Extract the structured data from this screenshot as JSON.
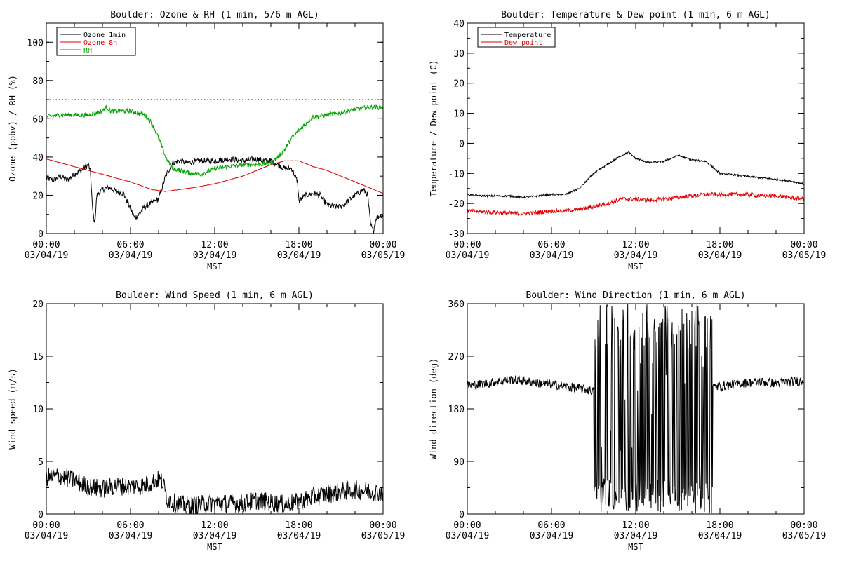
{
  "colors": {
    "black": "#000000",
    "red": "#e00000",
    "green": "#00a000"
  },
  "x_ticks": [
    {
      "time": "00:00",
      "date": "03/04/19"
    },
    {
      "time": "06:00",
      "date": "03/04/19"
    },
    {
      "time": "12:00",
      "date": "03/04/19"
    },
    {
      "time": "18:00",
      "date": "03/04/19"
    },
    {
      "time": "00:00",
      "date": "03/05/19"
    }
  ],
  "chart_data": [
    {
      "type": "line",
      "title": "Boulder: Ozone & RH (1 min, 5/6 m AGL)",
      "xlabel": "MST",
      "ylabel": "Ozone (ppbv) / RH (%)",
      "xlim_hours": [
        0,
        24
      ],
      "ylim": [
        0,
        110
      ],
      "yticks": [
        0,
        20,
        40,
        60,
        80,
        100
      ],
      "reference_line": {
        "value": 70,
        "style": "dotted",
        "color": "#e00000"
      },
      "legend": "top-left",
      "series": [
        {
          "name": "Ozone 1min",
          "color": "#000000",
          "noise": 1.5,
          "points": [
            [
              0,
              29
            ],
            [
              0.5,
              28
            ],
            [
              1,
              30
            ],
            [
              1.5,
              28
            ],
            [
              2,
              31
            ],
            [
              2.5,
              33
            ],
            [
              3,
              36
            ],
            [
              3.15,
              32
            ],
            [
              3.3,
              12
            ],
            [
              3.45,
              5
            ],
            [
              3.6,
              20
            ],
            [
              4,
              23
            ],
            [
              4.5,
              24
            ],
            [
              5,
              22
            ],
            [
              5.5,
              21
            ],
            [
              6,
              13
            ],
            [
              6.3,
              8
            ],
            [
              6.6,
              10
            ],
            [
              7,
              14
            ],
            [
              7.5,
              16
            ],
            [
              8,
              18
            ],
            [
              8.5,
              30
            ],
            [
              9,
              37
            ],
            [
              9.5,
              38
            ],
            [
              10,
              37
            ],
            [
              11,
              38
            ],
            [
              12,
              38
            ],
            [
              13,
              39
            ],
            [
              14,
              38
            ],
            [
              15,
              39
            ],
            [
              15.5,
              38
            ],
            [
              16,
              38
            ],
            [
              16.5,
              36
            ],
            [
              17,
              34
            ],
            [
              17.5,
              34
            ],
            [
              17.9,
              27
            ],
            [
              18,
              17
            ],
            [
              18.5,
              20
            ],
            [
              19,
              21
            ],
            [
              19.5,
              20
            ],
            [
              20,
              15
            ],
            [
              20.5,
              14
            ],
            [
              21,
              14
            ],
            [
              21.5,
              17
            ],
            [
              22,
              20
            ],
            [
              22.4,
              22
            ],
            [
              22.6,
              23
            ],
            [
              22.9,
              20
            ],
            [
              23.1,
              5
            ],
            [
              23.3,
              1
            ],
            [
              23.5,
              8
            ],
            [
              24,
              10
            ]
          ]
        },
        {
          "name": "Ozone 8h",
          "color": "#e00000",
          "noise": 0.1,
          "points": [
            [
              0,
              39
            ],
            [
              2,
              35
            ],
            [
              4,
              31
            ],
            [
              6,
              27
            ],
            [
              7.5,
              23
            ],
            [
              8.5,
              22
            ],
            [
              9.5,
              23
            ],
            [
              10.5,
              24
            ],
            [
              12,
              26
            ],
            [
              14,
              30
            ],
            [
              16,
              36
            ],
            [
              17,
              38
            ],
            [
              18,
              38
            ],
            [
              19,
              35
            ],
            [
              20,
              33
            ],
            [
              21,
              30
            ],
            [
              22,
              27
            ],
            [
              23,
              24
            ],
            [
              24,
              21
            ]
          ]
        },
        {
          "name": "RH",
          "color": "#00a000",
          "noise": 1.2,
          "points": [
            [
              0,
              61
            ],
            [
              1,
              62
            ],
            [
              2,
              62
            ],
            [
              3,
              62
            ],
            [
              3.5,
              63
            ],
            [
              4,
              64
            ],
            [
              4.3,
              66
            ],
            [
              4.6,
              64
            ],
            [
              5,
              64
            ],
            [
              6,
              64
            ],
            [
              7,
              62
            ],
            [
              7.5,
              58
            ],
            [
              8,
              50
            ],
            [
              8.5,
              40
            ],
            [
              9,
              34
            ],
            [
              10,
              32
            ],
            [
              11,
              31
            ],
            [
              12,
              34
            ],
            [
              13,
              35
            ],
            [
              14,
              36
            ],
            [
              15,
              36
            ],
            [
              16,
              37
            ],
            [
              16.5,
              40
            ],
            [
              17,
              44
            ],
            [
              17.5,
              50
            ],
            [
              18,
              54
            ],
            [
              19,
              61
            ],
            [
              20,
              62
            ],
            [
              21,
              63
            ],
            [
              22,
              65
            ],
            [
              23,
              66
            ],
            [
              24,
              66
            ]
          ]
        }
      ]
    },
    {
      "type": "line",
      "title": "Boulder: Temperature & Dew point (1 min, 6 m AGL)",
      "xlabel": "MST",
      "ylabel": "Temperature / Dew point (C)",
      "xlim_hours": [
        0,
        24
      ],
      "ylim": [
        -30,
        40
      ],
      "yticks": [
        -30,
        -20,
        -10,
        0,
        10,
        20,
        30,
        40
      ],
      "legend": "top-left",
      "series": [
        {
          "name": "Temperature",
          "color": "#000000",
          "noise": 0.3,
          "points": [
            [
              0,
              -17
            ],
            [
              1,
              -17.5
            ],
            [
              2,
              -17.5
            ],
            [
              3,
              -17.5
            ],
            [
              4,
              -18
            ],
            [
              5,
              -17.5
            ],
            [
              6,
              -17
            ],
            [
              7,
              -17
            ],
            [
              8,
              -15
            ],
            [
              9,
              -10
            ],
            [
              10,
              -7
            ],
            [
              11,
              -4
            ],
            [
              11.5,
              -3
            ],
            [
              12,
              -5
            ],
            [
              13,
              -6.5
            ],
            [
              14,
              -6
            ],
            [
              15,
              -4
            ],
            [
              16,
              -5.5
            ],
            [
              17,
              -6
            ],
            [
              17.5,
              -8
            ],
            [
              18,
              -10
            ],
            [
              19,
              -10.5
            ],
            [
              20,
              -11
            ],
            [
              21,
              -11.5
            ],
            [
              22,
              -12
            ],
            [
              23,
              -12.5
            ],
            [
              24,
              -13.5
            ]
          ]
        },
        {
          "name": "Dew point",
          "color": "#e00000",
          "noise": 0.7,
          "points": [
            [
              0,
              -22.5
            ],
            [
              2,
              -23
            ],
            [
              4,
              -23.5
            ],
            [
              6,
              -22.5
            ],
            [
              7,
              -22.5
            ],
            [
              8,
              -22
            ],
            [
              9,
              -21
            ],
            [
              10,
              -20
            ],
            [
              11,
              -18.5
            ],
            [
              12,
              -18.5
            ],
            [
              13,
              -19
            ],
            [
              14,
              -18.5
            ],
            [
              15,
              -18
            ],
            [
              16,
              -17.5
            ],
            [
              17,
              -17
            ],
            [
              18,
              -17
            ],
            [
              19,
              -17
            ],
            [
              20,
              -17
            ],
            [
              21,
              -17.5
            ],
            [
              22,
              -17.5
            ],
            [
              23,
              -18
            ],
            [
              24,
              -18.5
            ]
          ]
        }
      ]
    },
    {
      "type": "line",
      "title": "Boulder: Wind Speed (1 min, 6 m AGL)",
      "xlabel": "MST",
      "ylabel": "Wind speed (m/s)",
      "xlim_hours": [
        0,
        24
      ],
      "ylim": [
        0,
        20
      ],
      "yticks": [
        0,
        5,
        10,
        15,
        20
      ],
      "series": [
        {
          "color": "#000000",
          "noise": 0.9,
          "points": [
            [
              0,
              3.5
            ],
            [
              1,
              3.6
            ],
            [
              2,
              3.2
            ],
            [
              3,
              2.6
            ],
            [
              4,
              2.4
            ],
            [
              5,
              2.7
            ],
            [
              6,
              2.6
            ],
            [
              7,
              2.7
            ],
            [
              7.5,
              3.0
            ],
            [
              8,
              3.3
            ],
            [
              8.3,
              3.0
            ],
            [
              8.6,
              1.5
            ],
            [
              9,
              1.1
            ],
            [
              10,
              0.8
            ],
            [
              11,
              0.9
            ],
            [
              12,
              1.1
            ],
            [
              13,
              1.0
            ],
            [
              14,
              1.0
            ],
            [
              15,
              1.3
            ],
            [
              16,
              1.1
            ],
            [
              17,
              0.9
            ],
            [
              18,
              1.2
            ],
            [
              19,
              1.6
            ],
            [
              20,
              1.9
            ],
            [
              21,
              2.1
            ],
            [
              22,
              2.3
            ],
            [
              23,
              2.2
            ],
            [
              24,
              2.0
            ]
          ]
        }
      ]
    },
    {
      "type": "line",
      "title": "Boulder: Wind Direction (1 min, 6 m AGL)",
      "xlabel": "MST",
      "ylabel": "Wind direction (deg)",
      "xlim_hours": [
        0,
        24
      ],
      "ylim": [
        0,
        360
      ],
      "yticks": [
        0,
        90,
        180,
        270,
        360
      ],
      "series": [
        {
          "color": "#000000",
          "noise": 8,
          "points": [
            [
              0,
              220
            ],
            [
              1,
              222
            ],
            [
              2,
              226
            ],
            [
              3,
              230
            ],
            [
              4,
              228
            ],
            [
              5,
              224
            ],
            [
              6,
              222
            ],
            [
              7,
              218
            ],
            [
              8,
              215
            ],
            [
              9,
              210
            ],
            [
              18,
              218
            ],
            [
              19,
              222
            ],
            [
              20,
              225
            ],
            [
              21,
              226
            ],
            [
              22,
              224
            ],
            [
              23,
              226
            ],
            [
              24,
              228
            ]
          ],
          "variable_interval": {
            "start": 9,
            "end": 17.5,
            "low": 0,
            "high": 360
          }
        }
      ]
    }
  ]
}
